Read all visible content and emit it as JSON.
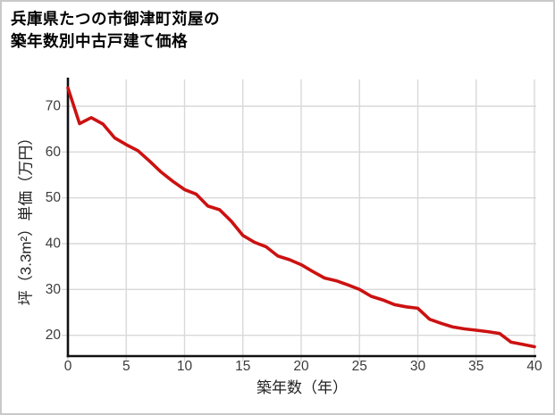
{
  "page": {
    "title_line1": "兵庫県たつの市御津町苅屋の",
    "title_line2": "築年数別中古戸建て価格"
  },
  "chart_data": {
    "type": "line",
    "title": "兵庫県たつの市御津町苅屋の築年数別中古戸建て価格",
    "xlabel": "築年数（年）",
    "ylabel": "坪（3.3m²）単価（万円）",
    "x": [
      0,
      1,
      2,
      3,
      4,
      5,
      6,
      7,
      8,
      9,
      10,
      11,
      12,
      13,
      14,
      15,
      16,
      17,
      18,
      19,
      20,
      21,
      22,
      23,
      24,
      25,
      26,
      27,
      28,
      29,
      30,
      31,
      32,
      33,
      34,
      35,
      36,
      37,
      38,
      39,
      40
    ],
    "values": [
      74.0,
      66.2,
      67.5,
      66.1,
      63.1,
      61.6,
      60.3,
      58.0,
      55.6,
      53.6,
      51.8,
      50.8,
      48.2,
      47.4,
      44.9,
      41.8,
      40.3,
      39.3,
      37.3,
      36.5,
      35.4,
      33.9,
      32.5,
      31.9,
      31.0,
      30.0,
      28.5,
      27.7,
      26.7,
      26.2,
      25.9,
      23.5,
      22.6,
      21.8,
      21.4,
      21.1,
      20.8,
      20.4,
      18.5,
      18.0,
      17.5
    ],
    "xticks": [
      0,
      5,
      10,
      15,
      20,
      25,
      30,
      35,
      40
    ],
    "yticks": [
      20,
      30,
      40,
      50,
      60,
      70
    ],
    "xlim": [
      0,
      40.2
    ],
    "ylim": [
      15.5,
      75.7
    ],
    "grid": true,
    "legend": false,
    "line_color": "#cc1111",
    "grid_color": "#d9d9d9",
    "axis_color": "#111111",
    "tick_label_color": "#3c3c3c",
    "axis_title_color": "#222222"
  }
}
